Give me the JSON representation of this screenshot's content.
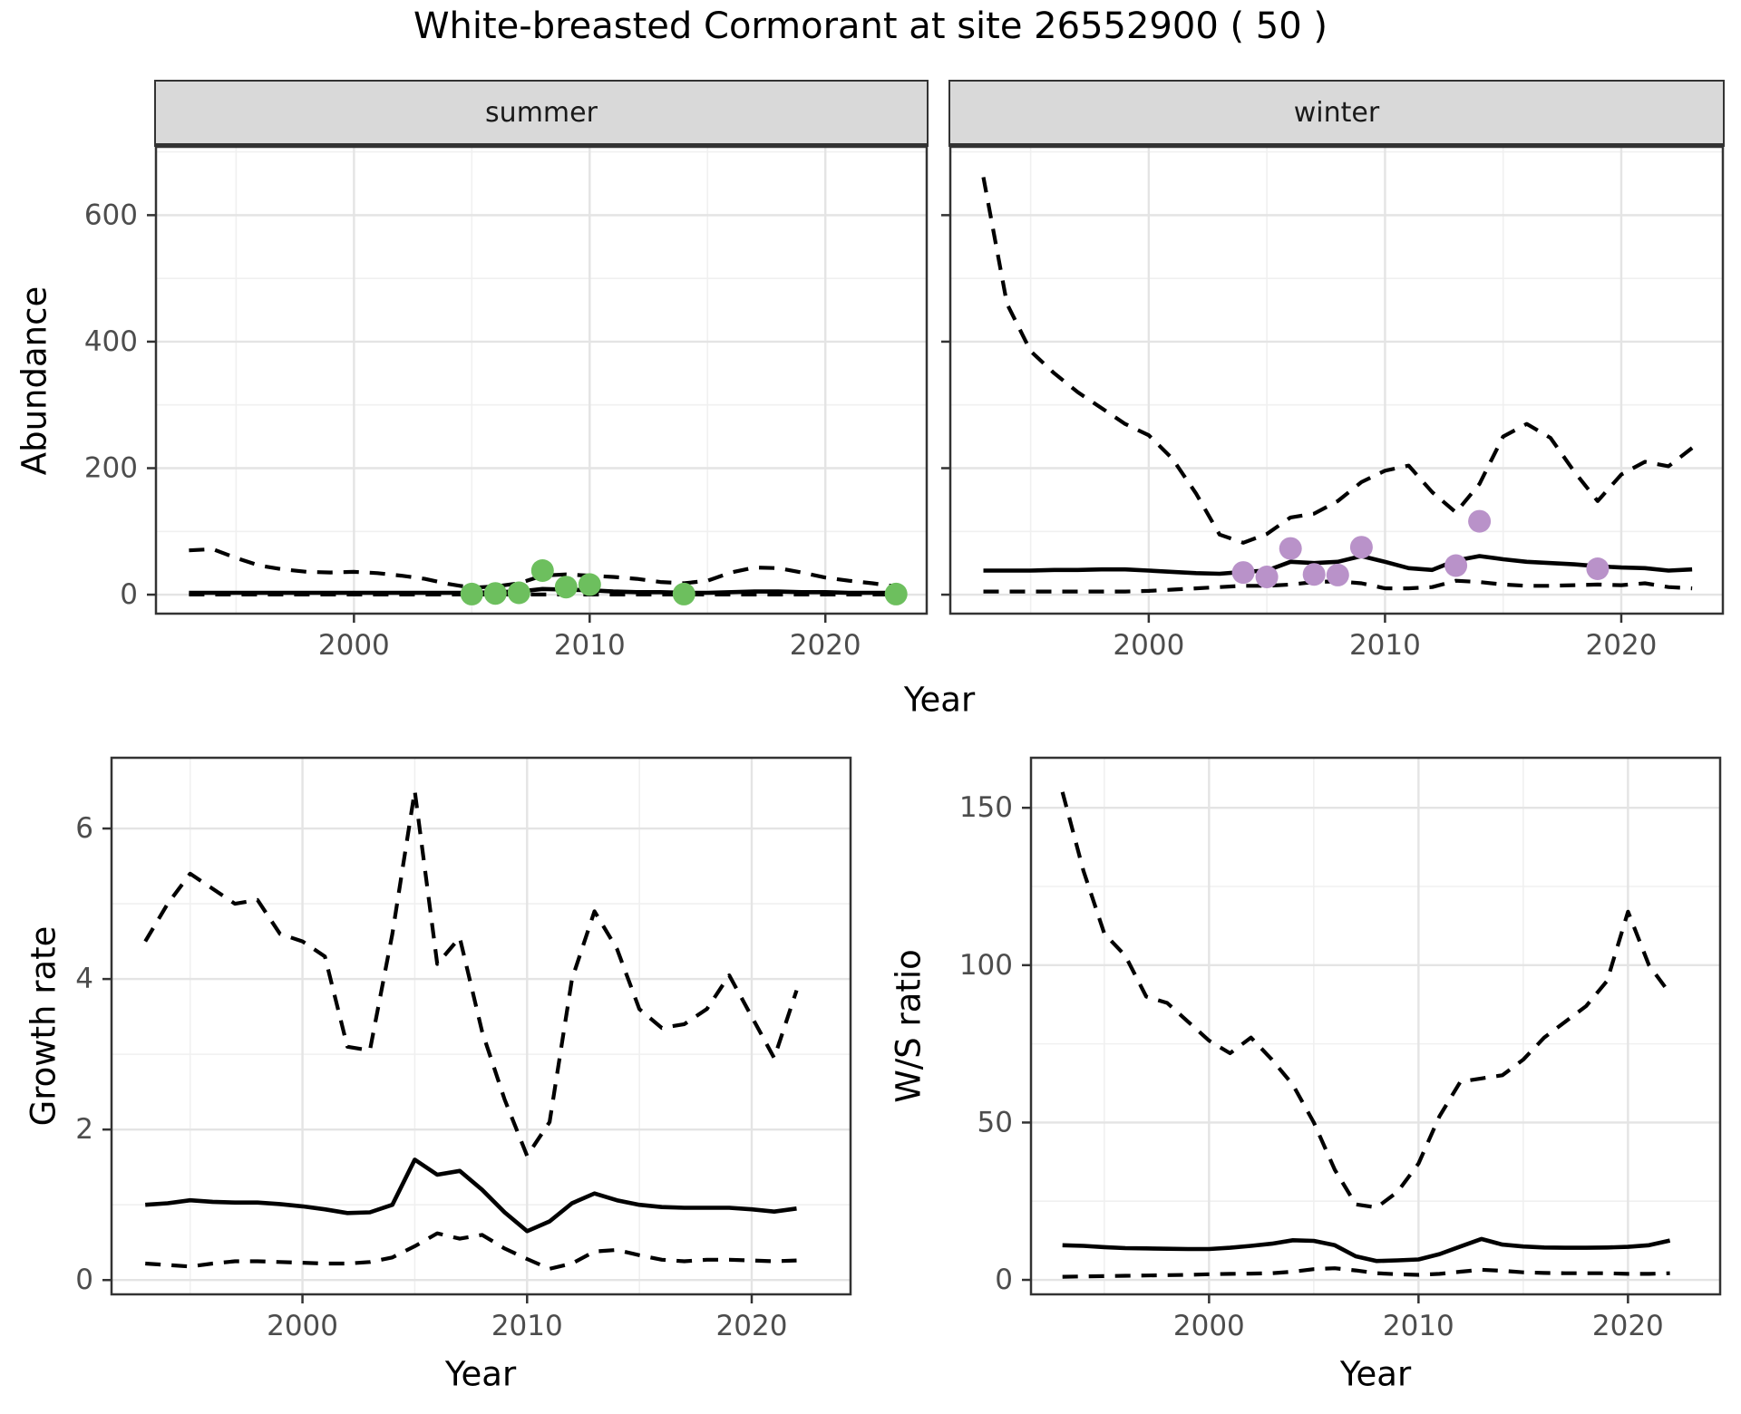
{
  "title": "White-breasted Cormorant at site 26552900 ( 50 )",
  "axis_labels": {
    "abundance": "Abundance",
    "year": "Year",
    "growth_rate": "Growth rate",
    "ws_ratio": "W/S ratio"
  },
  "facets": {
    "summer": "summer",
    "winter": "winter"
  },
  "colors": {
    "summer_points": "#6DBF5E",
    "winter_points": "#B992C9",
    "line": "#000000",
    "panel_border": "#333333",
    "strip_bg": "#D9D9D9",
    "grid_major": "#E4E4E4",
    "grid_minor": "#F0F0F0",
    "tick_label": "#4D4D4D",
    "tick_mark": "#333333"
  },
  "chart_data": [
    {
      "id": "abundance-summer",
      "type": "line",
      "facet_label": "summer",
      "ylabel": "Abundance",
      "xlabel": "Year",
      "xlim": [
        1991.6,
        2024.3
      ],
      "ylim": [
        -30,
        708
      ],
      "xticks": [
        2000,
        2010,
        2020
      ],
      "xminor_ticks": [
        1995,
        2005,
        2015
      ],
      "yticks": [
        0,
        200,
        400,
        600
      ],
      "yminor_ticks": [
        100,
        300,
        500,
        700
      ],
      "x": [
        1993,
        1994,
        1995,
        1996,
        1997,
        1998,
        1999,
        2000,
        2001,
        2002,
        2003,
        2004,
        2005,
        2006,
        2007,
        2008,
        2009,
        2010,
        2011,
        2012,
        2013,
        2014,
        2015,
        2016,
        2017,
        2018,
        2019,
        2020,
        2021,
        2022,
        2023
      ],
      "series": [
        {
          "name": "upper_95ci",
          "linetype": "dashed",
          "values": [
            70,
            72,
            58,
            46,
            40,
            36,
            35,
            36,
            34,
            30,
            25,
            17,
            11,
            13,
            18,
            30,
            32,
            30,
            28,
            25,
            20,
            18,
            22,
            35,
            43,
            42,
            35,
            27,
            22,
            18,
            13
          ]
        },
        {
          "name": "median",
          "linetype": "solid",
          "values": [
            3,
            3,
            3,
            3,
            3,
            3,
            3,
            3,
            3,
            3,
            3,
            3,
            3,
            4,
            5,
            9,
            8,
            7,
            5,
            4,
            4,
            3,
            3,
            4,
            5,
            5,
            4,
            4,
            3,
            3,
            3
          ]
        },
        {
          "name": "lower_95ci",
          "linetype": "dashed",
          "values": [
            0.3,
            0.3,
            0.3,
            0.3,
            0.3,
            0.3,
            0.3,
            0.3,
            0.3,
            0.3,
            0.3,
            0.3,
            0.3,
            0.3,
            0.3,
            0.3,
            0.3,
            0.3,
            0.3,
            0.3,
            0.3,
            0.3,
            0.3,
            0.3,
            0.3,
            0.3,
            0.3,
            0.3,
            0.3,
            0.3,
            0.3
          ]
        }
      ],
      "points": {
        "name": "observed-counts-summer",
        "color_key": "summer_points",
        "data": [
          [
            2005,
            1
          ],
          [
            2006,
            2
          ],
          [
            2007,
            3
          ],
          [
            2008,
            38
          ],
          [
            2009,
            12
          ],
          [
            2010,
            16
          ],
          [
            2014,
            1
          ],
          [
            2023,
            1
          ]
        ]
      }
    },
    {
      "id": "abundance-winter",
      "type": "line",
      "facet_label": "winter",
      "ylabel": "Abundance",
      "xlabel": "Year",
      "xlim": [
        1991.6,
        2024.3
      ],
      "ylim": [
        -30,
        708
      ],
      "xticks": [
        2000,
        2010,
        2020
      ],
      "xminor_ticks": [
        1995,
        2005,
        2015
      ],
      "yticks": [
        0,
        200,
        400,
        600
      ],
      "yminor_ticks": [
        100,
        300,
        500,
        700
      ],
      "x": [
        1993,
        1994,
        1995,
        1996,
        1997,
        1998,
        1999,
        2000,
        2001,
        2002,
        2003,
        2004,
        2005,
        2006,
        2007,
        2008,
        2009,
        2010,
        2011,
        2012,
        2013,
        2014,
        2015,
        2016,
        2017,
        2018,
        2019,
        2020,
        2021,
        2022,
        2023
      ],
      "series": [
        {
          "name": "upper_95ci",
          "linetype": "dashed",
          "values": [
            660,
            460,
            385,
            350,
            320,
            295,
            270,
            252,
            215,
            160,
            95,
            82,
            96,
            122,
            128,
            148,
            178,
            196,
            204,
            162,
            130,
            175,
            250,
            270,
            248,
            195,
            148,
            190,
            210,
            203,
            232
          ]
        },
        {
          "name": "median",
          "linetype": "solid",
          "values": [
            38,
            38,
            38,
            39,
            39,
            40,
            40,
            38,
            36,
            34,
            33,
            36,
            38,
            52,
            50,
            52,
            61,
            52,
            42,
            39,
            54,
            61,
            56,
            52,
            50,
            48,
            45,
            43,
            42,
            38,
            40
          ]
        },
        {
          "name": "lower_95ci",
          "linetype": "dashed",
          "values": [
            5,
            5,
            5,
            5,
            5,
            5,
            5,
            6,
            8,
            10,
            12,
            14,
            14,
            16,
            20,
            21,
            18,
            10,
            10,
            12,
            22,
            20,
            16,
            14,
            14,
            15,
            16,
            15,
            18,
            12,
            10
          ]
        }
      ],
      "points": {
        "name": "observed-counts-winter",
        "color_key": "winter_points",
        "data": [
          [
            2004,
            35
          ],
          [
            2005,
            28
          ],
          [
            2006,
            73
          ],
          [
            2007,
            32
          ],
          [
            2008,
            31
          ],
          [
            2009,
            75
          ],
          [
            2013,
            46
          ],
          [
            2014,
            116
          ],
          [
            2019,
            41
          ]
        ]
      }
    },
    {
      "id": "growth-rate",
      "type": "line",
      "facet_label": null,
      "ylabel": "Growth rate",
      "xlabel": "Year",
      "xlim": [
        1991.5,
        2024.4
      ],
      "ylim": [
        -0.19,
        6.94
      ],
      "xticks": [
        2000,
        2010,
        2020
      ],
      "xminor_ticks": [
        1995,
        2005,
        2015
      ],
      "yticks": [
        0,
        2,
        4,
        6
      ],
      "yminor_ticks": [
        1,
        3,
        5
      ],
      "x": [
        1993,
        1994,
        1995,
        1996,
        1997,
        1998,
        1999,
        2000,
        2001,
        2002,
        2003,
        2004,
        2005,
        2006,
        2007,
        2008,
        2009,
        2010,
        2011,
        2012,
        2013,
        2014,
        2015,
        2016,
        2017,
        2018,
        2019,
        2020,
        2021,
        2022
      ],
      "series": [
        {
          "name": "upper_95ci",
          "linetype": "dashed",
          "values": [
            4.5,
            5.0,
            5.4,
            5.2,
            5.0,
            5.05,
            4.6,
            4.5,
            4.3,
            3.1,
            3.05,
            4.6,
            6.5,
            4.2,
            4.55,
            3.3,
            2.4,
            1.65,
            2.1,
            4.0,
            4.9,
            4.4,
            3.6,
            3.35,
            3.4,
            3.6,
            4.05,
            3.5,
            2.95,
            3.85
          ]
        },
        {
          "name": "median",
          "linetype": "solid",
          "values": [
            1.0,
            1.02,
            1.06,
            1.04,
            1.03,
            1.03,
            1.01,
            0.98,
            0.94,
            0.89,
            0.9,
            1.0,
            1.6,
            1.4,
            1.45,
            1.2,
            0.9,
            0.65,
            0.78,
            1.02,
            1.15,
            1.06,
            1.0,
            0.97,
            0.96,
            0.96,
            0.96,
            0.94,
            0.91,
            0.95
          ]
        },
        {
          "name": "lower_95ci",
          "linetype": "dashed",
          "values": [
            0.22,
            0.2,
            0.18,
            0.22,
            0.25,
            0.25,
            0.24,
            0.23,
            0.22,
            0.22,
            0.24,
            0.3,
            0.45,
            0.62,
            0.55,
            0.6,
            0.42,
            0.28,
            0.15,
            0.22,
            0.38,
            0.4,
            0.33,
            0.27,
            0.25,
            0.27,
            0.27,
            0.26,
            0.25,
            0.26
          ]
        }
      ],
      "points": null
    },
    {
      "id": "ws-ratio",
      "type": "line",
      "facet_label": null,
      "ylabel": "W/S ratio",
      "xlabel": "Year",
      "xlim": [
        1991.5,
        2024.4
      ],
      "ylim": [
        -4.6,
        165.9
      ],
      "xticks": [
        2000,
        2010,
        2020
      ],
      "xminor_ticks": [
        1995,
        2005,
        2015
      ],
      "yticks": [
        0,
        50,
        100,
        150
      ],
      "yminor_ticks": [
        25,
        75,
        125
      ],
      "x": [
        1993,
        1994,
        1995,
        1996,
        1997,
        1998,
        1999,
        2000,
        2001,
        2002,
        2003,
        2004,
        2005,
        2006,
        2007,
        2008,
        2009,
        2010,
        2011,
        2012,
        2013,
        2014,
        2015,
        2016,
        2017,
        2018,
        2019,
        2020,
        2021,
        2022
      ],
      "series": [
        {
          "name": "upper_95ci",
          "linetype": "dashed",
          "values": [
            155,
            130,
            110,
            103,
            90,
            88,
            82,
            76,
            72,
            77,
            70,
            62,
            50,
            35,
            24,
            23,
            28,
            37,
            52,
            63,
            64,
            65,
            70,
            77,
            82,
            87,
            95,
            117,
            100,
            91
          ]
        },
        {
          "name": "median",
          "linetype": "solid",
          "values": [
            11,
            10.8,
            10.4,
            10.1,
            10,
            9.9,
            9.8,
            9.8,
            10.2,
            10.8,
            11.5,
            12.6,
            12.4,
            11,
            7.5,
            6,
            6.2,
            6.5,
            8.2,
            10.6,
            13,
            11.2,
            10.6,
            10.3,
            10.2,
            10.2,
            10.3,
            10.5,
            11,
            12.5
          ]
        },
        {
          "name": "lower_95ci",
          "linetype": "dashed",
          "values": [
            1,
            1.1,
            1.2,
            1.3,
            1.4,
            1.5,
            1.6,
            1.8,
            1.9,
            2,
            2.1,
            2.6,
            3.4,
            3.7,
            3,
            2.1,
            1.8,
            1.6,
            1.9,
            2.6,
            3.2,
            2.9,
            2.4,
            2.2,
            2.1,
            2.1,
            2.1,
            1.9,
            1.9,
            2.1
          ]
        }
      ],
      "points": null
    }
  ]
}
